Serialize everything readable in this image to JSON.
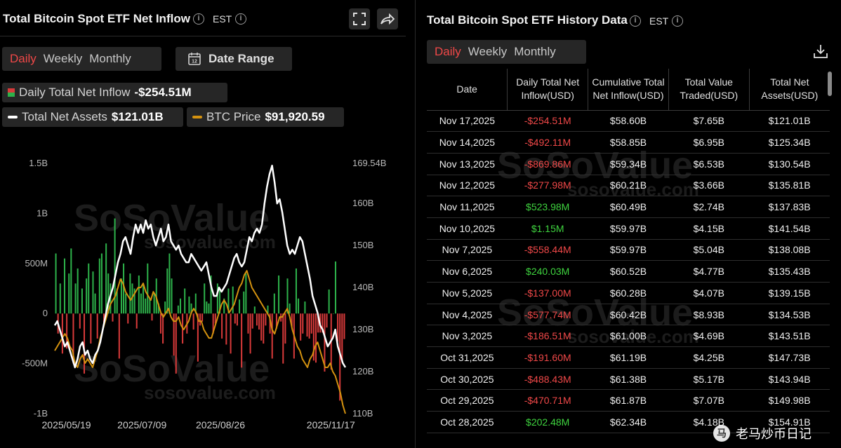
{
  "left": {
    "title": "Total Bitcoin Spot ETF Net Inflow",
    "tz": "EST",
    "tabs": [
      "Daily",
      "Weekly",
      "Monthly"
    ],
    "active_tab": "Daily",
    "date_range_label": "Date Range",
    "legend": {
      "inflow_label": "Daily Total Net Inflow",
      "inflow_value": "-$254.51M",
      "assets_label": "Total Net Assets",
      "assets_value": "$121.01B",
      "btc_label": "BTC Price",
      "btc_value": "$91,920.59"
    },
    "watermark": "SoSoValue",
    "watermark_url": "sosovalue.com"
  },
  "right": {
    "title": "Total Bitcoin Spot ETF History Data",
    "tz": "EST",
    "tabs": [
      "Daily",
      "Weekly",
      "Monthly"
    ],
    "active_tab": "Daily",
    "columns": [
      "Date",
      "Daily Total Net Inflow(USD)",
      "Cumulative Total Net Inflow(USD)",
      "Total Value Traded(USD)",
      "Total Net Assets(USD)"
    ],
    "rows": [
      [
        "Nov 17,2025",
        "-$254.51M",
        "$58.60B",
        "$7.65B",
        "$121.01B"
      ],
      [
        "Nov 14,2025",
        "-$492.11M",
        "$58.85B",
        "$6.95B",
        "$125.34B"
      ],
      [
        "Nov 13,2025",
        "-$869.86M",
        "$59.34B",
        "$6.53B",
        "$130.54B"
      ],
      [
        "Nov 12,2025",
        "-$277.98M",
        "$60.21B",
        "$3.66B",
        "$135.81B"
      ],
      [
        "Nov 11,2025",
        "$523.98M",
        "$60.49B",
        "$2.74B",
        "$137.83B"
      ],
      [
        "Nov 10,2025",
        "$1.15M",
        "$59.97B",
        "$4.15B",
        "$141.54B"
      ],
      [
        "Nov 7,2025",
        "-$558.44M",
        "$59.97B",
        "$5.04B",
        "$138.08B"
      ],
      [
        "Nov 6,2025",
        "$240.03M",
        "$60.52B",
        "$4.77B",
        "$135.43B"
      ],
      [
        "Nov 5,2025",
        "-$137.00M",
        "$60.28B",
        "$4.07B",
        "$139.15B"
      ],
      [
        "Nov 4,2025",
        "-$577.74M",
        "$60.42B",
        "$8.93B",
        "$134.53B"
      ],
      [
        "Nov 3,2025",
        "-$186.51M",
        "$61.00B",
        "$4.69B",
        "$143.51B"
      ],
      [
        "Oct 31,2025",
        "-$191.60M",
        "$61.19B",
        "$4.25B",
        "$147.73B"
      ],
      [
        "Oct 30,2025",
        "-$488.43M",
        "$61.38B",
        "$5.17B",
        "$143.94B"
      ],
      [
        "Oct 29,2025",
        "-$470.71M",
        "$61.87B",
        "$7.07B",
        "$149.98B"
      ],
      [
        "Oct 28,2025",
        "$202.48M",
        "$62.34B",
        "$4.18B",
        "$154.91B"
      ]
    ],
    "footer_badge": "老马炒币日记"
  },
  "colors": {
    "positive": "#3fd43f",
    "negative": "#f04848",
    "assets_line": "#ffffff",
    "btc_line": "#d4920f",
    "bar_pos": "#2db14a",
    "bar_neg": "#d83a3a"
  },
  "chart_data": {
    "type": "bar",
    "title": "Total Bitcoin Spot ETF Net Inflow",
    "x_tick_labels": [
      "2025/05/19",
      "2025/07/09",
      "2025/08/26",
      "2025/11/17"
    ],
    "y_left_ticks": [
      "1.5B",
      "1B",
      "500M",
      "0",
      "-500M",
      "-1B"
    ],
    "y_left_range": [
      -1000,
      1500
    ],
    "y_left_unit": "M USD",
    "y_right_ticks": [
      "169.54B",
      "160B",
      "150B",
      "140B",
      "130B",
      "120B",
      "110B"
    ],
    "y_right_range": [
      110,
      169.54
    ],
    "y_right_unit": "B USD",
    "grid": false,
    "series": [
      {
        "name": "Daily Total Net Inflow",
        "type": "bar",
        "axis": "left",
        "values": [
          600,
          -200,
          300,
          -400,
          550,
          -350,
          400,
          650,
          -500,
          300,
          450,
          -150,
          250,
          -600,
          350,
          500,
          -300,
          420,
          200,
          -250,
          550,
          600,
          -120,
          700,
          400,
          300,
          -80,
          950,
          250,
          -450,
          350,
          500,
          200,
          -100,
          400,
          300,
          250,
          -150,
          380,
          200,
          300,
          150,
          500,
          150,
          -70,
          200,
          350,
          100,
          -200,
          -300,
          120,
          450,
          600,
          350,
          -420,
          -600,
          80,
          150,
          -300,
          250,
          -200,
          170,
          100,
          -160,
          200,
          -480,
          -120,
          -80,
          300,
          120,
          100,
          380,
          -200,
          -100,
          300,
          250,
          -250,
          150,
          -310,
          250,
          -400,
          270,
          -100,
          -120,
          140,
          -540,
          220,
          400,
          -200,
          -400,
          -150,
          70,
          -120,
          -160,
          -270,
          -300,
          -120,
          80,
          -200,
          -450,
          200,
          -150,
          380,
          -80,
          -500,
          -300,
          350,
          100,
          -130,
          -450,
          450,
          150,
          -270,
          -200,
          120,
          -230,
          -250,
          -200,
          -470,
          -490,
          -190,
          -190,
          -190,
          -580,
          -140,
          240,
          -560,
          1,
          520,
          -280,
          -870,
          -490,
          -255
        ]
      },
      {
        "name": "Total Net Assets",
        "type": "line",
        "axis": "right",
        "values": [
          131,
          132,
          130,
          128,
          126,
          127,
          125,
          123,
          121,
          123,
          126,
          127,
          124,
          125,
          123,
          122,
          124,
          125,
          127,
          130,
          133,
          136,
          138,
          140,
          143,
          146,
          148,
          151,
          152,
          150,
          148,
          152,
          155,
          153,
          155,
          153,
          156,
          154,
          155,
          152,
          150,
          152,
          154,
          151,
          152,
          155,
          151,
          150,
          149,
          150,
          148,
          147,
          146,
          146,
          148,
          147,
          146,
          145,
          144,
          145,
          146,
          143,
          140,
          138,
          138,
          140,
          139,
          140,
          141,
          143,
          145,
          147,
          148,
          146,
          145,
          146,
          149,
          152,
          151,
          153,
          154,
          153,
          155,
          160,
          164,
          167,
          169,
          165,
          160,
          161,
          158,
          154,
          150,
          148,
          149,
          148,
          150,
          152,
          151,
          148,
          145,
          142,
          138,
          136,
          134,
          131,
          130,
          128,
          126,
          127,
          128,
          130,
          126,
          124,
          122,
          121
        ]
      },
      {
        "name": "BTC Price",
        "type": "line",
        "axis": "right_scaled",
        "values": [
          125,
          126,
          127,
          128,
          129,
          128,
          126,
          125,
          122,
          121,
          123,
          124,
          122,
          123,
          122,
          121,
          123,
          125,
          128,
          130,
          132,
          134,
          136,
          137,
          138,
          140,
          142,
          141,
          139,
          138,
          137,
          138,
          139,
          140,
          140,
          141,
          139,
          138,
          137,
          139,
          138,
          136,
          134,
          133,
          134,
          135,
          133,
          132,
          132,
          133,
          131,
          130,
          131,
          132,
          134,
          135,
          134,
          132,
          132,
          130,
          129,
          128,
          128,
          130,
          132,
          134,
          136,
          137,
          136,
          134,
          135,
          136,
          138,
          140,
          141,
          143,
          144,
          142,
          140,
          139,
          138,
          137,
          136,
          135,
          134,
          133,
          130,
          129,
          131,
          133,
          133,
          134,
          135,
          133,
          130,
          128,
          126,
          125,
          123,
          122,
          121,
          123,
          124,
          126,
          127,
          125,
          123,
          121,
          121,
          122,
          120,
          119,
          117,
          115,
          112,
          110
        ]
      }
    ]
  }
}
